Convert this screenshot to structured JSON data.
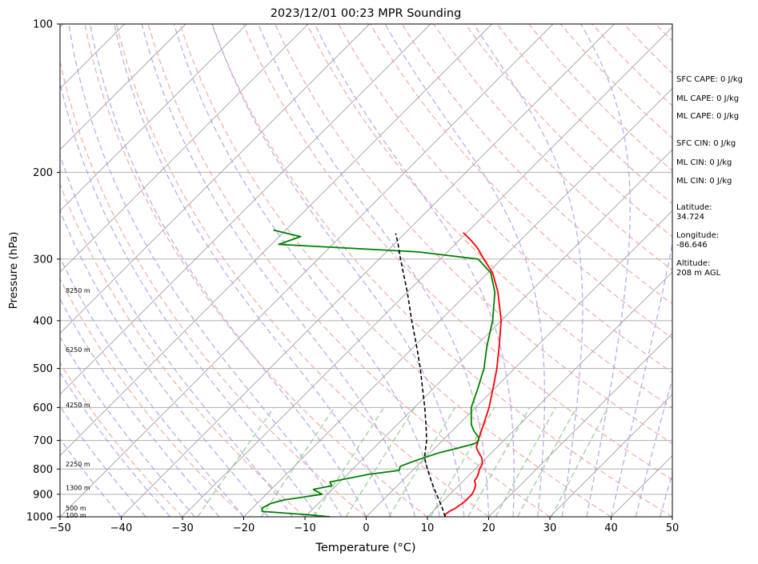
{
  "chart_data": {
    "type": "line",
    "title": "2023/12/01 00:23 MPR Sounding",
    "xlabel": "Temperature (°C)",
    "ylabel": "Pressure (hPa)",
    "xlim": [
      -50,
      50
    ],
    "ylim": [
      1000,
      100
    ],
    "yscale": "log",
    "skew_deg": 45,
    "grid": true,
    "x_ticks": [
      {
        "value": -50,
        "label": "−50"
      },
      {
        "value": -40,
        "label": "−40"
      },
      {
        "value": -30,
        "label": "−30"
      },
      {
        "value": -20,
        "label": "−20"
      },
      {
        "value": -10,
        "label": "−10"
      },
      {
        "value": 0,
        "label": "0"
      },
      {
        "value": 10,
        "label": "10"
      },
      {
        "value": 20,
        "label": "20"
      },
      {
        "value": 30,
        "label": "30"
      },
      {
        "value": 40,
        "label": "40"
      },
      {
        "value": 50,
        "label": "50"
      }
    ],
    "y_ticks": [
      {
        "value": 100,
        "label": "100"
      },
      {
        "value": 200,
        "label": "200"
      },
      {
        "value": 300,
        "label": "300"
      },
      {
        "value": 400,
        "label": "400"
      },
      {
        "value": 500,
        "label": "500"
      },
      {
        "value": 600,
        "label": "600"
      },
      {
        "value": 700,
        "label": "700"
      },
      {
        "value": 800,
        "label": "800"
      },
      {
        "value": 900,
        "label": "900"
      },
      {
        "value": 1000,
        "label": "1000"
      }
    ],
    "height_labels": [
      {
        "pressure": 993,
        "label": "100 m"
      },
      {
        "pressure": 960,
        "label": "500 m"
      },
      {
        "pressure": 873,
        "label": "1300 m"
      },
      {
        "pressure": 782,
        "label": "2250 m"
      },
      {
        "pressure": 593,
        "label": "4250 m"
      },
      {
        "pressure": 458,
        "label": "6250 m"
      },
      {
        "pressure": 347,
        "label": "8250 m"
      }
    ],
    "series": [
      {
        "color": "#ff0000",
        "points": [
          [
            1000,
            12.9
          ],
          [
            990,
            12.5
          ],
          [
            975,
            12.7
          ],
          [
            960,
            13.2
          ],
          [
            950,
            13.3
          ],
          [
            940,
            13.5
          ],
          [
            925,
            13.6
          ],
          [
            900,
            13.6
          ],
          [
            880,
            13.2
          ],
          [
            860,
            12.6
          ],
          [
            845,
            11.8
          ],
          [
            830,
            11.6
          ],
          [
            815,
            11.2
          ],
          [
            800,
            10.7
          ],
          [
            780,
            10.3
          ],
          [
            760,
            9.3
          ],
          [
            745,
            8.2
          ],
          [
            730,
            7.1
          ],
          [
            720,
            6.5
          ],
          [
            710,
            6.2
          ],
          [
            700,
            5.8
          ],
          [
            650,
            4.1
          ],
          [
            600,
            2.2
          ],
          [
            550,
            -0.2
          ],
          [
            500,
            -2.9
          ],
          [
            450,
            -6.2
          ],
          [
            400,
            -10.0
          ],
          [
            350,
            -15.2
          ],
          [
            320,
            -19.2
          ],
          [
            300,
            -22.9
          ],
          [
            285,
            -25.7
          ],
          [
            275,
            -28.0
          ],
          [
            265,
            -30.6
          ]
        ]
      },
      {
        "color": "#008000",
        "points": [
          [
            1000,
            -5.9
          ],
          [
            990,
            -10.1
          ],
          [
            975,
            -17.9
          ],
          [
            960,
            -18.4
          ],
          [
            940,
            -17.8
          ],
          [
            925,
            -16.3
          ],
          [
            900,
            -10.9
          ],
          [
            880,
            -13.1
          ],
          [
            865,
            -10.7
          ],
          [
            850,
            -11.6
          ],
          [
            820,
            -6.5
          ],
          [
            805,
            -2.2
          ],
          [
            790,
            -2.7
          ],
          [
            775,
            -1.6
          ],
          [
            760,
            -0.3
          ],
          [
            740,
            1.6
          ],
          [
            725,
            3.8
          ],
          [
            710,
            5.8
          ],
          [
            700,
            5.9
          ],
          [
            690,
            5.4
          ],
          [
            670,
            3.6
          ],
          [
            650,
            2.1
          ],
          [
            600,
            -0.7
          ],
          [
            550,
            -2.7
          ],
          [
            500,
            -5.0
          ],
          [
            450,
            -8.2
          ],
          [
            400,
            -11.4
          ],
          [
            350,
            -15.7
          ],
          [
            320,
            -19.5
          ],
          [
            300,
            -23.8
          ],
          [
            290,
            -34.8
          ],
          [
            280,
            -58.8
          ],
          [
            270,
            -56.5
          ],
          [
            262,
            -62.0
          ]
        ]
      },
      {
        "color": "#000000",
        "dashed": true,
        "points": [
          [
            1000,
            12.9
          ],
          [
            950,
            10.5
          ],
          [
            900,
            7.8
          ],
          [
            850,
            5.0
          ],
          [
            800,
            2.2
          ],
          [
            770,
            0.5
          ],
          [
            750,
            -0.5
          ],
          [
            700,
            -2.6
          ],
          [
            650,
            -5.3
          ],
          [
            600,
            -8.3
          ],
          [
            550,
            -11.7
          ],
          [
            500,
            -15.4
          ],
          [
            450,
            -19.7
          ],
          [
            400,
            -24.6
          ],
          [
            350,
            -30.0
          ],
          [
            300,
            -36.5
          ],
          [
            280,
            -39.3
          ],
          [
            266,
            -41.5
          ]
        ]
      }
    ]
  },
  "side_panel": {
    "sfc_cape": "SFC CAPE: 0 J/kg",
    "ml_cape_1": "ML CAPE: 0 J/kg",
    "ml_cape_2": "ML CAPE: 0 J/kg",
    "sfc_cin": "SFC CIN: 0 J/kg",
    "ml_cin_1": "ML CIN: 0 J/kg",
    "ml_cin_2": "ML CIN: 0 J/kg",
    "latitude_label": "Latitude:",
    "latitude_value": "34.724",
    "longitude_label": "Longitude:",
    "longitude_value": "-86.646",
    "altitude_label": "Altitude:",
    "altitude_value": "208 m AGL"
  },
  "colors": {
    "temperature": "#ff0000",
    "dewpoint": "#008000",
    "parcel": "#000000",
    "dry_adiabat": "#f4a0a0",
    "moist_adiabat": "#a8a0f0",
    "mixing_ratio": "#88c888",
    "isotherm": "#a0a0a0"
  }
}
